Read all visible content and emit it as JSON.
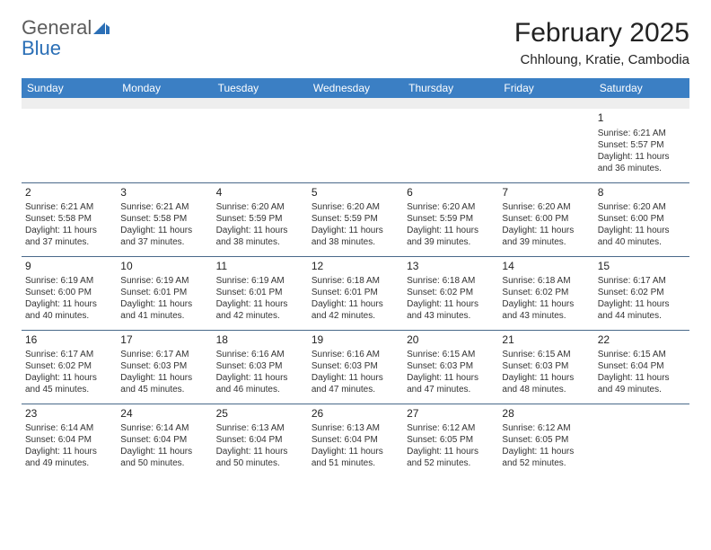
{
  "logo": {
    "word1": "General",
    "word2": "Blue"
  },
  "title": "February 2025",
  "location": "Chhloung, Kratie, Cambodia",
  "dayHeaders": [
    "Sunday",
    "Monday",
    "Tuesday",
    "Wednesday",
    "Thursday",
    "Friday",
    "Saturday"
  ],
  "colors": {
    "headerBg": "#3b7fc4",
    "headerText": "#ffffff",
    "spacerBg": "#eeeeee",
    "border": "#4a6a8a",
    "logoGray": "#5c5c5c",
    "logoBlue": "#2b6fb6"
  },
  "weeks": [
    [
      null,
      null,
      null,
      null,
      null,
      null,
      {
        "n": "1",
        "sr": "6:21 AM",
        "ss": "5:57 PM",
        "dl": "11 hours and 36 minutes."
      }
    ],
    [
      {
        "n": "2",
        "sr": "6:21 AM",
        "ss": "5:58 PM",
        "dl": "11 hours and 37 minutes."
      },
      {
        "n": "3",
        "sr": "6:21 AM",
        "ss": "5:58 PM",
        "dl": "11 hours and 37 minutes."
      },
      {
        "n": "4",
        "sr": "6:20 AM",
        "ss": "5:59 PM",
        "dl": "11 hours and 38 minutes."
      },
      {
        "n": "5",
        "sr": "6:20 AM",
        "ss": "5:59 PM",
        "dl": "11 hours and 38 minutes."
      },
      {
        "n": "6",
        "sr": "6:20 AM",
        "ss": "5:59 PM",
        "dl": "11 hours and 39 minutes."
      },
      {
        "n": "7",
        "sr": "6:20 AM",
        "ss": "6:00 PM",
        "dl": "11 hours and 39 minutes."
      },
      {
        "n": "8",
        "sr": "6:20 AM",
        "ss": "6:00 PM",
        "dl": "11 hours and 40 minutes."
      }
    ],
    [
      {
        "n": "9",
        "sr": "6:19 AM",
        "ss": "6:00 PM",
        "dl": "11 hours and 40 minutes."
      },
      {
        "n": "10",
        "sr": "6:19 AM",
        "ss": "6:01 PM",
        "dl": "11 hours and 41 minutes."
      },
      {
        "n": "11",
        "sr": "6:19 AM",
        "ss": "6:01 PM",
        "dl": "11 hours and 42 minutes."
      },
      {
        "n": "12",
        "sr": "6:18 AM",
        "ss": "6:01 PM",
        "dl": "11 hours and 42 minutes."
      },
      {
        "n": "13",
        "sr": "6:18 AM",
        "ss": "6:02 PM",
        "dl": "11 hours and 43 minutes."
      },
      {
        "n": "14",
        "sr": "6:18 AM",
        "ss": "6:02 PM",
        "dl": "11 hours and 43 minutes."
      },
      {
        "n": "15",
        "sr": "6:17 AM",
        "ss": "6:02 PM",
        "dl": "11 hours and 44 minutes."
      }
    ],
    [
      {
        "n": "16",
        "sr": "6:17 AM",
        "ss": "6:02 PM",
        "dl": "11 hours and 45 minutes."
      },
      {
        "n": "17",
        "sr": "6:17 AM",
        "ss": "6:03 PM",
        "dl": "11 hours and 45 minutes."
      },
      {
        "n": "18",
        "sr": "6:16 AM",
        "ss": "6:03 PM",
        "dl": "11 hours and 46 minutes."
      },
      {
        "n": "19",
        "sr": "6:16 AM",
        "ss": "6:03 PM",
        "dl": "11 hours and 47 minutes."
      },
      {
        "n": "20",
        "sr": "6:15 AM",
        "ss": "6:03 PM",
        "dl": "11 hours and 47 minutes."
      },
      {
        "n": "21",
        "sr": "6:15 AM",
        "ss": "6:03 PM",
        "dl": "11 hours and 48 minutes."
      },
      {
        "n": "22",
        "sr": "6:15 AM",
        "ss": "6:04 PM",
        "dl": "11 hours and 49 minutes."
      }
    ],
    [
      {
        "n": "23",
        "sr": "6:14 AM",
        "ss": "6:04 PM",
        "dl": "11 hours and 49 minutes."
      },
      {
        "n": "24",
        "sr": "6:14 AM",
        "ss": "6:04 PM",
        "dl": "11 hours and 50 minutes."
      },
      {
        "n": "25",
        "sr": "6:13 AM",
        "ss": "6:04 PM",
        "dl": "11 hours and 50 minutes."
      },
      {
        "n": "26",
        "sr": "6:13 AM",
        "ss": "6:04 PM",
        "dl": "11 hours and 51 minutes."
      },
      {
        "n": "27",
        "sr": "6:12 AM",
        "ss": "6:05 PM",
        "dl": "11 hours and 52 minutes."
      },
      {
        "n": "28",
        "sr": "6:12 AM",
        "ss": "6:05 PM",
        "dl": "11 hours and 52 minutes."
      },
      null
    ]
  ],
  "labels": {
    "sunrise": "Sunrise:",
    "sunset": "Sunset:",
    "daylight": "Daylight:"
  }
}
